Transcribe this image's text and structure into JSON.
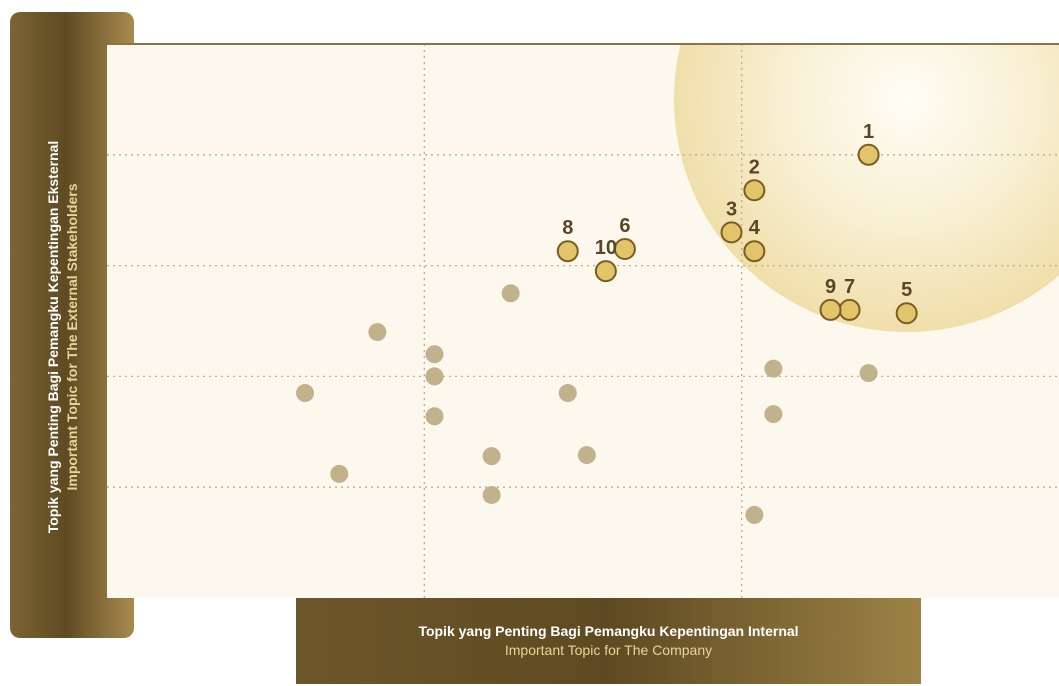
{
  "chart_data": {
    "type": "scatter",
    "title": "",
    "ylabel_line1": "Topik yang Penting Bagi Pemangku Kepentingan Eksternal",
    "ylabel_line2": "Important Topic for The External Stakeholders",
    "xlabel_line1": "Topik yang Penting Bagi Pemangku Kepentingan Internal",
    "xlabel_line2": "Important Topic for The Company",
    "xlim": [
      0,
      5
    ],
    "ylim": [
      0,
      5
    ],
    "grid": true,
    "highlight_region": {
      "center": [
        4.2,
        4.5
      ],
      "radius_x": 1.3,
      "radius_y": 2.1
    },
    "colors": {
      "panel": "#6b5428",
      "plot_bg": "#fcf8ee",
      "highlight": "#f0dfaa",
      "material_point": "#e2c46a",
      "material_point_stroke": "#7a5d22",
      "other_point": "#c2b28b",
      "label": "#5a4626"
    },
    "material_points": [
      {
        "label": "1",
        "x": 4.0,
        "y": 4.0
      },
      {
        "label": "2",
        "x": 3.4,
        "y": 3.68
      },
      {
        "label": "3",
        "x": 3.28,
        "y": 3.3
      },
      {
        "label": "4",
        "x": 3.4,
        "y": 3.13
      },
      {
        "label": "5",
        "x": 4.2,
        "y": 2.57
      },
      {
        "label": "6",
        "x": 2.72,
        "y": 3.15
      },
      {
        "label": "7",
        "x": 3.9,
        "y": 2.6
      },
      {
        "label": "8",
        "x": 2.42,
        "y": 3.13
      },
      {
        "label": "9",
        "x": 3.8,
        "y": 2.6
      },
      {
        "label": "10",
        "x": 2.62,
        "y": 2.95
      }
    ],
    "other_points": [
      {
        "x": 1.04,
        "y": 1.85
      },
      {
        "x": 1.22,
        "y": 1.12
      },
      {
        "x": 1.42,
        "y": 2.4
      },
      {
        "x": 1.72,
        "y": 2.2
      },
      {
        "x": 1.72,
        "y": 2.0
      },
      {
        "x": 1.72,
        "y": 1.64
      },
      {
        "x": 2.02,
        "y": 1.28
      },
      {
        "x": 2.02,
        "y": 0.93
      },
      {
        "x": 2.42,
        "y": 1.85
      },
      {
        "x": 2.52,
        "y": 1.29
      },
      {
        "x": 2.12,
        "y": 2.75
      },
      {
        "x": 3.5,
        "y": 2.07
      },
      {
        "x": 3.5,
        "y": 1.66
      },
      {
        "x": 3.4,
        "y": 0.75
      },
      {
        "x": 4.0,
        "y": 2.03
      }
    ]
  }
}
